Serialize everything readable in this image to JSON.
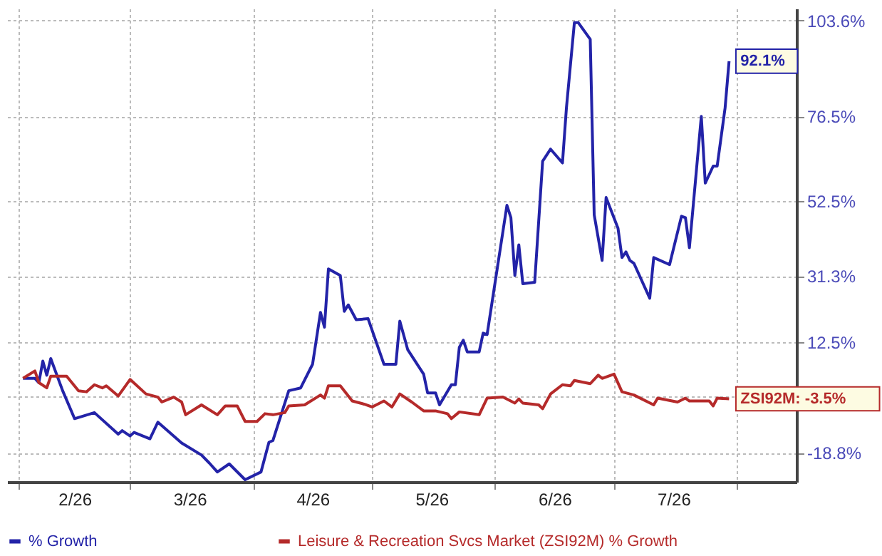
{
  "chart_data": {
    "type": "line",
    "xlim": [
      "2026-01-29",
      "2026-08-16"
    ],
    "xticks": [
      {
        "value": "2026-02-01",
        "label": null
      },
      {
        "value": "2026-02-15",
        "label": "2/26"
      },
      {
        "value": "2026-03-01",
        "label": null
      },
      {
        "value": "2026-03-16",
        "label": "3/26"
      },
      {
        "value": "2026-04-01",
        "label": null
      },
      {
        "value": "2026-04-16",
        "label": "4/26"
      },
      {
        "value": "2026-05-01",
        "label": null
      },
      {
        "value": "2026-05-16",
        "label": "5/26"
      },
      {
        "value": "2026-06-01",
        "label": null
      },
      {
        "value": "2026-06-16",
        "label": "6/26"
      },
      {
        "value": "2026-07-01",
        "label": null
      },
      {
        "value": "2026-07-16",
        "label": "7/26"
      },
      {
        "value": "2026-08-01",
        "label": null
      }
    ],
    "ylim": [
      -27,
      107
    ],
    "yticks": [
      {
        "value": -18.8,
        "label": "-18.8%"
      },
      {
        "value": -2.9,
        "label": null
      },
      {
        "value": 12.5,
        "label": "12.5%"
      },
      {
        "value": 31.3,
        "label": "31.3%"
      },
      {
        "value": 52.5,
        "label": "52.5%"
      },
      {
        "value": 76.5,
        "label": "76.5%"
      },
      {
        "value": 103.6,
        "label": "103.6%"
      }
    ],
    "grid": true,
    "legend": "bottom",
    "marker": "none",
    "line_style": "solid",
    "series": [
      {
        "name": "% Growth",
        "color": "#2323a8",
        "x": [
          "2026-02-02",
          "2026-02-05",
          "2026-02-06",
          "2026-02-07",
          "2026-02-08",
          "2026-02-09",
          "2026-02-12",
          "2026-02-15",
          "2026-02-20",
          "2026-02-26",
          "2026-02-27",
          "2026-03-01",
          "2026-03-02",
          "2026-03-06",
          "2026-03-08",
          "2026-03-14",
          "2026-03-19",
          "2026-03-21",
          "2026-03-23",
          "2026-03-26",
          "2026-03-30",
          "2026-04-03",
          "2026-04-05",
          "2026-04-06",
          "2026-04-10",
          "2026-04-13",
          "2026-04-16",
          "2026-04-18",
          "2026-04-19",
          "2026-04-20",
          "2026-04-23",
          "2026-04-24",
          "2026-04-25",
          "2026-04-27",
          "2026-04-30",
          "2026-05-04",
          "2026-05-07",
          "2026-05-08",
          "2026-05-10",
          "2026-05-14",
          "2026-05-15",
          "2026-05-17",
          "2026-05-18",
          "2026-05-21",
          "2026-05-22",
          "2026-05-23",
          "2026-05-24",
          "2026-05-25",
          "2026-05-28",
          "2026-05-29",
          "2026-05-30",
          "2026-06-04",
          "2026-06-05",
          "2026-06-06",
          "2026-06-07",
          "2026-06-08",
          "2026-06-11",
          "2026-06-13",
          "2026-06-15",
          "2026-06-18",
          "2026-06-19",
          "2026-06-21",
          "2026-06-22",
          "2026-06-25",
          "2026-06-26",
          "2026-06-28",
          "2026-06-29",
          "2026-07-02",
          "2026-07-03",
          "2026-07-04",
          "2026-07-05",
          "2026-07-06",
          "2026-07-10",
          "2026-07-11",
          "2026-07-15",
          "2026-07-18",
          "2026-07-19",
          "2026-07-20",
          "2026-07-23",
          "2026-07-24",
          "2026-07-26",
          "2026-07-27",
          "2026-07-29",
          "2026-07-30"
        ],
        "values": [
          2.3,
          2.3,
          1.1,
          7.2,
          3.2,
          7.9,
          -1.2,
          -9.1,
          -7.4,
          -13.5,
          -12.5,
          -14.0,
          -13.0,
          -14.8,
          -10.1,
          -16.0,
          -19.4,
          -21.7,
          -24.2,
          -21.9,
          -26.4,
          -24.2,
          -15.8,
          -15.3,
          -1.2,
          -0.4,
          6.3,
          21.0,
          16.8,
          33.3,
          31.4,
          21.3,
          23.1,
          18.9,
          19.2,
          6.3,
          6.3,
          18.5,
          10.4,
          3.5,
          -1.8,
          -1.8,
          -5.2,
          0.5,
          0.5,
          11.1,
          13.1,
          9.8,
          9.8,
          15.1,
          14.7,
          51.3,
          47.8,
          31.4,
          40.1,
          29.1,
          29.5,
          63.8,
          67.2,
          63.3,
          78.9,
          103.0,
          103.0,
          98.3,
          48.6,
          35.7,
          53.5,
          44.8,
          36.5,
          38.1,
          35.7,
          34.9,
          25.0,
          36.5,
          34.5,
          48.2,
          47.8,
          39.3,
          76.5,
          57.6,
          62.4,
          62.4,
          78.9,
          92.1
        ]
      },
      {
        "name": "Leisure & Recreation Svcs Market (ZSI92M) % Growth",
        "color": "#b52a2a",
        "x": [
          "2026-02-02",
          "2026-02-05",
          "2026-02-06",
          "2026-02-08",
          "2026-02-09",
          "2026-02-13",
          "2026-02-16",
          "2026-02-18",
          "2026-02-20",
          "2026-02-22",
          "2026-02-23",
          "2026-02-26",
          "2026-03-01",
          "2026-03-05",
          "2026-03-08",
          "2026-03-09",
          "2026-03-12",
          "2026-03-14",
          "2026-03-15",
          "2026-03-19",
          "2026-03-23",
          "2026-03-25",
          "2026-03-28",
          "2026-03-30",
          "2026-04-02",
          "2026-04-04",
          "2026-04-06",
          "2026-04-09",
          "2026-04-10",
          "2026-04-14",
          "2026-04-18",
          "2026-04-19",
          "2026-04-20",
          "2026-04-23",
          "2026-04-26",
          "2026-04-29",
          "2026-05-01",
          "2026-05-04",
          "2026-05-06",
          "2026-05-08",
          "2026-05-11",
          "2026-05-14",
          "2026-05-17",
          "2026-05-20",
          "2026-05-21",
          "2026-05-23",
          "2026-05-28",
          "2026-05-30",
          "2026-06-03",
          "2026-06-06",
          "2026-06-07",
          "2026-06-08",
          "2026-06-12",
          "2026-06-13",
          "2026-06-15",
          "2026-06-18",
          "2026-06-20",
          "2026-06-21",
          "2026-06-25",
          "2026-06-27",
          "2026-06-28",
          "2026-07-01",
          "2026-07-03",
          "2026-07-06",
          "2026-07-11",
          "2026-07-12",
          "2026-07-17",
          "2026-07-19",
          "2026-07-20",
          "2026-07-25",
          "2026-07-26",
          "2026-07-27",
          "2026-07-30"
        ],
        "values": [
          2.3,
          4.4,
          1.1,
          -0.4,
          2.9,
          2.9,
          -1.2,
          -1.5,
          0.5,
          -0.4,
          0.2,
          -2.7,
          2.0,
          -2.1,
          -3.0,
          -4.4,
          -3.0,
          -4.4,
          -8.0,
          -5.2,
          -8.0,
          -5.5,
          -5.5,
          -9.9,
          -9.9,
          -7.7,
          -8.0,
          -7.4,
          -5.5,
          -5.2,
          -2.4,
          -3.3,
          0.2,
          0.2,
          -4.1,
          -5.0,
          -5.8,
          -4.1,
          -5.8,
          -2.1,
          -4.4,
          -6.9,
          -6.9,
          -7.7,
          -9.1,
          -7.2,
          -8.0,
          -3.3,
          -3.0,
          -4.7,
          -3.5,
          -4.7,
          -5.2,
          -6.3,
          -2.1,
          0.5,
          0.2,
          1.7,
          0.8,
          3.2,
          2.3,
          3.5,
          -1.5,
          -2.4,
          -5.2,
          -3.3,
          -4.4,
          -3.3,
          -4.1,
          -4.1,
          -5.5,
          -3.3,
          -3.5
        ]
      }
    ],
    "annotations": [
      {
        "text": "92.1%",
        "x": "2026-07-30",
        "y": 92.1
      },
      {
        "text": "ZSI92M: -3.5%",
        "x": "2026-07-30",
        "y": -3.5
      }
    ]
  }
}
